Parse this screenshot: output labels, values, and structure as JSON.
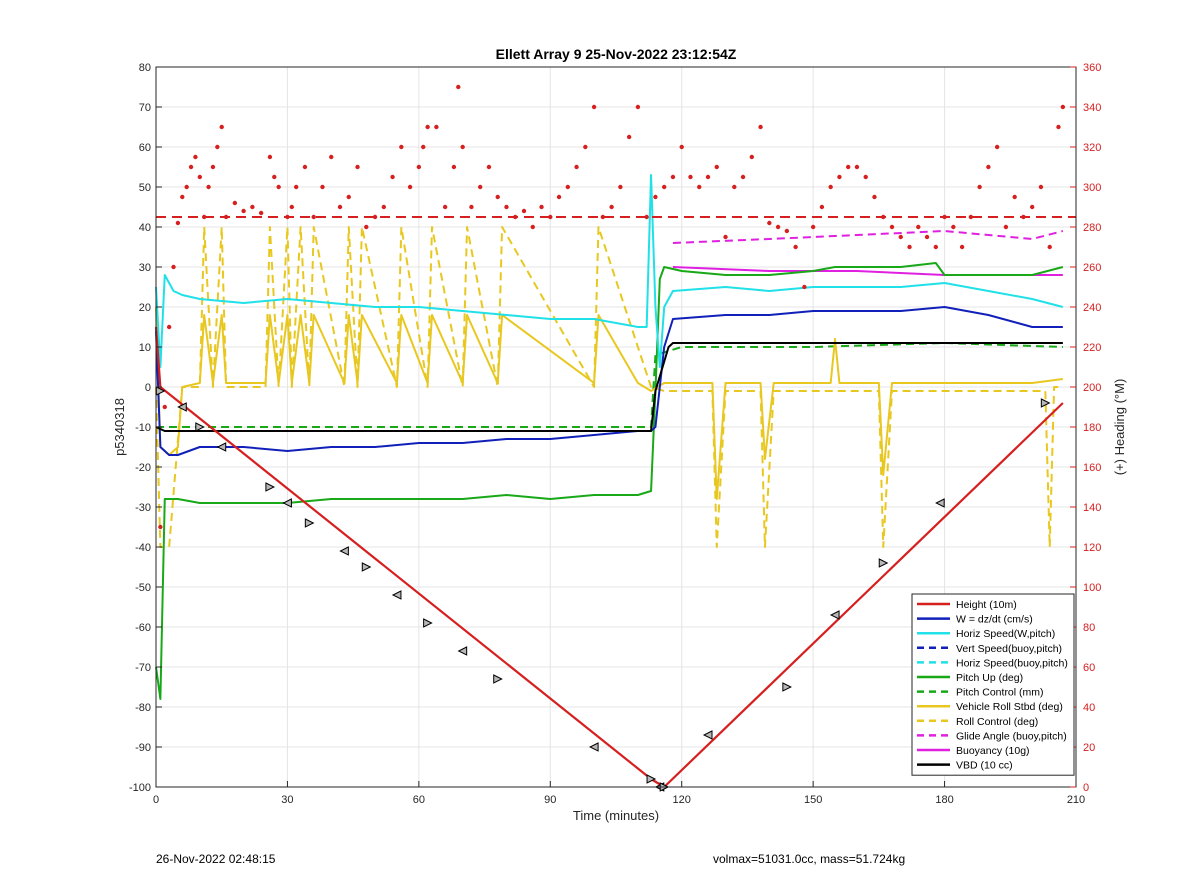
{
  "chart_data": {
    "type": "line",
    "title": "Ellett Array 9 25-Nov-2022 23:12:54Z",
    "xlabel": "Time (minutes)",
    "ylabel": "p5340318",
    "y2label": "(+) Heading (°M)",
    "xlim": [
      0,
      210
    ],
    "ylim": [
      -100,
      80
    ],
    "y2lim": [
      0,
      360
    ],
    "xticks": [
      0,
      30,
      60,
      90,
      120,
      150,
      180,
      210
    ],
    "yticks": [
      -100,
      -90,
      -80,
      -70,
      -60,
      -50,
      -40,
      -30,
      -20,
      -10,
      0,
      10,
      20,
      30,
      40,
      50,
      60,
      70,
      80
    ],
    "y2ticks": [
      0,
      20,
      40,
      60,
      80,
      100,
      120,
      140,
      160,
      180,
      200,
      220,
      240,
      260,
      280,
      300,
      320,
      340,
      360
    ],
    "grid": true,
    "legend_position": "bottom-right",
    "colors": {
      "height": "#d62020",
      "w": "#1020b8",
      "horiz": "#20e0e8",
      "pitch": "#18a818",
      "roll": "#e8c820",
      "glide": "#e020e0",
      "buoy": "#e020e0",
      "vbd": "#000000",
      "heading": "#d62020"
    },
    "series": [
      {
        "name": "Height (10m)",
        "color": "#d62020",
        "style": "solid",
        "x": [
          0,
          1,
          113,
          116,
          207
        ],
        "y": [
          15,
          0,
          -98,
          -100,
          -4
        ]
      },
      {
        "name": "W = dz/dt (cm/s)",
        "color": "#1020b8",
        "style": "solid",
        "x": [
          0,
          1,
          3,
          5,
          10,
          20,
          30,
          40,
          50,
          60,
          70,
          80,
          90,
          100,
          110,
          113,
          114,
          116,
          118,
          130,
          140,
          150,
          160,
          170,
          180,
          190,
          200,
          207
        ],
        "y": [
          14,
          -15,
          -17,
          -17,
          -15,
          -15,
          -16,
          -15,
          -15,
          -14,
          -14,
          -13,
          -13,
          -12,
          -11,
          -11,
          -10,
          10,
          17,
          18,
          18,
          19,
          19,
          19,
          20,
          18,
          15,
          15
        ]
      },
      {
        "name": "Horiz Speed(W,pitch)",
        "color": "#20e0e8",
        "style": "solid",
        "x": [
          0,
          1,
          2,
          4,
          6,
          10,
          20,
          30,
          40,
          50,
          60,
          70,
          80,
          90,
          100,
          110,
          112,
          113,
          114,
          115,
          116,
          118,
          130,
          140,
          150,
          160,
          170,
          180,
          190,
          200,
          207
        ],
        "y": [
          25,
          5,
          28,
          24,
          23,
          22,
          21,
          22,
          21,
          20,
          20,
          19,
          18,
          17,
          17,
          15,
          15,
          53,
          20,
          5,
          20,
          24,
          25,
          24,
          25,
          25,
          25,
          26,
          24,
          22,
          20
        ]
      },
      {
        "name": "Vert Speed(buoy,pitch)",
        "color": "#1020b8",
        "style": "dashed",
        "x": [],
        "y": []
      },
      {
        "name": "Horiz Speed(buoy,pitch)",
        "color": "#20e0e8",
        "style": "dashed",
        "x": [],
        "y": []
      },
      {
        "name": "Pitch Up (deg)",
        "color": "#18a818",
        "style": "solid",
        "x": [
          0,
          1,
          2,
          5,
          10,
          20,
          30,
          40,
          50,
          60,
          70,
          80,
          90,
          100,
          110,
          113,
          114,
          115,
          116,
          120,
          130,
          140,
          150,
          155,
          160,
          170,
          178,
          180,
          190,
          200,
          207
        ],
        "y": [
          -70,
          -78,
          -28,
          -28,
          -29,
          -29,
          -29,
          -28,
          -28,
          -28,
          -28,
          -27,
          -28,
          -27,
          -27,
          -26,
          -1,
          27,
          30,
          29,
          28,
          28,
          29,
          30,
          30,
          30,
          31,
          28,
          28,
          28,
          30
        ]
      },
      {
        "name": "Pitch Control (mm)",
        "color": "#18a818",
        "style": "dashed",
        "x": [
          0,
          2,
          113,
          114,
          120,
          150,
          180,
          207
        ],
        "y": [
          -10,
          -10,
          -10,
          8,
          10,
          10,
          11,
          10
        ]
      },
      {
        "name": "Vehicle Roll Stbd (deg)",
        "color": "#e8c820",
        "style": "solid",
        "x": [
          0,
          1,
          3,
          5,
          6,
          10,
          11,
          13,
          15,
          16,
          25,
          26,
          28,
          30,
          31,
          33,
          35,
          36,
          43,
          44,
          46,
          47,
          55,
          56,
          62,
          63,
          70,
          71,
          78,
          79,
          100,
          101,
          110,
          113,
          116,
          127,
          128,
          130,
          138,
          139,
          141,
          154,
          155,
          156,
          165,
          166,
          168,
          200,
          207
        ],
        "y": [
          20,
          -15,
          -17,
          -15,
          0,
          1,
          18,
          1,
          18,
          1,
          1,
          18,
          1,
          18,
          1,
          18,
          1,
          18,
          1,
          18,
          1,
          18,
          1,
          18,
          1,
          18,
          1,
          18,
          1,
          18,
          1,
          18,
          1,
          -1,
          1,
          1,
          -28,
          1,
          1,
          -18,
          1,
          1,
          12,
          1,
          1,
          -22,
          1,
          1,
          2
        ]
      },
      {
        "name": "Roll Control (deg)",
        "color": "#e8c820",
        "style": "dashed",
        "x": [
          0,
          1,
          3,
          6,
          10,
          11,
          13,
          15,
          16,
          25,
          26,
          28,
          30,
          31,
          33,
          35,
          36,
          43,
          44,
          46,
          47,
          55,
          56,
          62,
          63,
          70,
          71,
          78,
          79,
          100,
          101,
          113,
          116,
          127,
          128,
          130,
          138,
          139,
          141,
          165,
          166,
          168,
          203,
          204,
          205,
          207
        ],
        "y": [
          0,
          -40,
          -40,
          0,
          0,
          40,
          0,
          40,
          0,
          0,
          40,
          0,
          40,
          0,
          40,
          0,
          40,
          0,
          40,
          0,
          40,
          0,
          40,
          0,
          40,
          0,
          40,
          0,
          40,
          0,
          40,
          0,
          -1,
          -1,
          -40,
          -1,
          -1,
          -40,
          -1,
          -1,
          -40,
          -1,
          -1,
          -40,
          0,
          0
        ]
      },
      {
        "name": "Glide Angle (buoy,pitch)",
        "color": "#e020e0",
        "style": "dashed",
        "x": [
          118,
          140,
          160,
          180,
          200,
          207
        ],
        "y": [
          36,
          37,
          38,
          39,
          37,
          39
        ]
      },
      {
        "name": "Buoyancy (10g)",
        "color": "#e020e0",
        "style": "solid",
        "x": [
          118,
          140,
          160,
          180,
          207
        ],
        "y": [
          30,
          29,
          29,
          28,
          28
        ]
      },
      {
        "name": "VBD (10 cc)",
        "color": "#000000",
        "style": "solid",
        "x": [
          0,
          2,
          113,
          114,
          117,
          118,
          150,
          180,
          207
        ],
        "y": [
          -10,
          -11,
          -11,
          -1,
          10,
          11,
          11,
          11,
          11
        ]
      }
    ],
    "heading_series": {
      "name": "Heading (°M)",
      "axis": "right",
      "mean_line": 285,
      "x": [
        1,
        2,
        3,
        4,
        5,
        6,
        7,
        8,
        9,
        10,
        11,
        12,
        13,
        14,
        15,
        16,
        18,
        20,
        22,
        24,
        26,
        27,
        28,
        30,
        31,
        32,
        34,
        36,
        38,
        40,
        42,
        44,
        46,
        48,
        50,
        52,
        54,
        56,
        58,
        60,
        61,
        62,
        64,
        66,
        68,
        69,
        70,
        72,
        74,
        76,
        78,
        80,
        82,
        84,
        86,
        88,
        90,
        92,
        94,
        96,
        98,
        100,
        102,
        104,
        106,
        108,
        110,
        112,
        114,
        116,
        118,
        120,
        122,
        124,
        126,
        128,
        130,
        132,
        134,
        136,
        138,
        140,
        142,
        144,
        146,
        148,
        150,
        152,
        154,
        156,
        158,
        160,
        162,
        164,
        166,
        168,
        170,
        172,
        174,
        176,
        178,
        180,
        182,
        184,
        186,
        188,
        190,
        192,
        194,
        196,
        198,
        200,
        202,
        204,
        206,
        207
      ],
      "y": [
        130,
        190,
        230,
        260,
        282,
        295,
        300,
        310,
        315,
        305,
        285,
        300,
        310,
        320,
        330,
        285,
        292,
        288,
        290,
        287,
        315,
        305,
        300,
        285,
        290,
        300,
        310,
        285,
        300,
        315,
        290,
        295,
        310,
        280,
        285,
        290,
        305,
        320,
        300,
        310,
        320,
        330,
        330,
        290,
        310,
        350,
        320,
        290,
        300,
        310,
        295,
        290,
        285,
        288,
        280,
        290,
        285,
        295,
        300,
        310,
        320,
        340,
        285,
        290,
        300,
        325,
        340,
        285,
        295,
        300,
        305,
        320,
        305,
        300,
        305,
        310,
        275,
        300,
        305,
        315,
        330,
        282,
        280,
        278,
        270,
        250,
        280,
        290,
        300,
        305,
        310,
        310,
        305,
        295,
        285,
        280,
        275,
        270,
        280,
        275,
        270,
        285,
        280,
        270,
        285,
        300,
        310,
        320,
        280,
        295,
        285,
        290,
        300,
        270,
        330,
        340
      ]
    },
    "markers": {
      "x": [
        1,
        6,
        10,
        15,
        26,
        30,
        35,
        43,
        48,
        55,
        62,
        70,
        78,
        100,
        113,
        115,
        116,
        126,
        144,
        155,
        166,
        179,
        203
      ],
      "y": [
        -1,
        -5,
        -10,
        -15,
        -25,
        -29,
        -34,
        -41,
        -45,
        -52,
        -59,
        -66,
        -73,
        -90,
        -98,
        -100,
        -100,
        -87,
        -75,
        -57,
        -44,
        -29,
        -4
      ]
    }
  },
  "footer": {
    "left": "26-Nov-2022 02:48:15",
    "right": "volmax=51031.0cc, mass=51.724kg"
  }
}
